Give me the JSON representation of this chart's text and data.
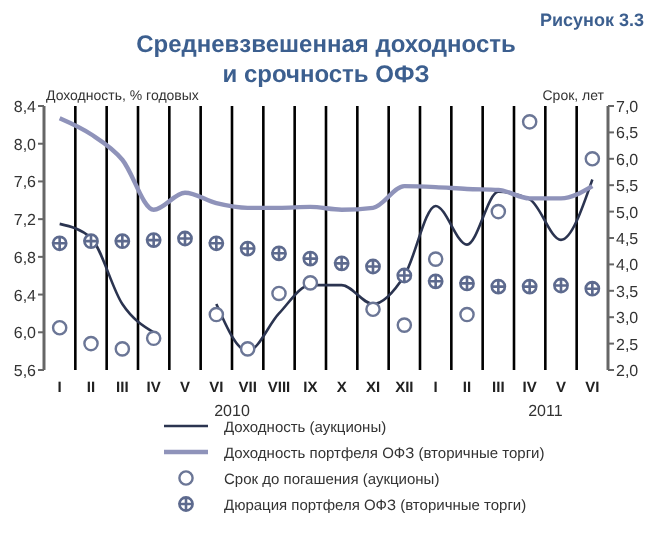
{
  "chart_data": {
    "type": "line",
    "title": "Средневзвешенная доходность\nи срочность ОФЗ",
    "ylabel": "Доходность, % годовых",
    "y2label": "Срок, лет",
    "annotations": [
      "Рисунок 3.3",
      "2010",
      "2011"
    ],
    "categories": [
      "I",
      "II",
      "III",
      "IV",
      "V",
      "VI",
      "VII",
      "VIII",
      "IX",
      "X",
      "XI",
      "XII",
      "I",
      "II",
      "III",
      "IV",
      "V",
      "VI"
    ],
    "ylim": [
      5.6,
      8.4
    ],
    "yticks": [
      {
        "value": 5.6,
        "label": "5,6"
      },
      {
        "value": 6.0,
        "label": "6,0"
      },
      {
        "value": 6.4,
        "label": "6,4"
      },
      {
        "value": 6.8,
        "label": "6,8"
      },
      {
        "value": 7.2,
        "label": "7,2"
      },
      {
        "value": 7.6,
        "label": "7,6"
      },
      {
        "value": 8.0,
        "label": "8,0"
      },
      {
        "value": 8.4,
        "label": "8,4"
      }
    ],
    "y2lim": [
      2.0,
      7.0
    ],
    "y2ticks": [
      {
        "value": 2.0,
        "label": "2,0"
      },
      {
        "value": 2.5,
        "label": "2,5"
      },
      {
        "value": 3.0,
        "label": "3,0"
      },
      {
        "value": 3.5,
        "label": "3,5"
      },
      {
        "value": 4.0,
        "label": "4,0"
      },
      {
        "value": 4.5,
        "label": "4,5"
      },
      {
        "value": 5.0,
        "label": "5,0"
      },
      {
        "value": 5.5,
        "label": "5,5"
      },
      {
        "value": 6.0,
        "label": "6,0"
      },
      {
        "value": 6.5,
        "label": "6,5"
      },
      {
        "value": 7.0,
        "label": "7,0"
      }
    ],
    "grid": "x",
    "legend": "bottom",
    "series": [
      {
        "name": "Доходность (аукционы)",
        "color": "#2b3450",
        "values": [
          7.15,
          7.0,
          6.3,
          6.0,
          null,
          6.3,
          5.8,
          6.2,
          6.5,
          6.5,
          6.3,
          6.6,
          7.34,
          6.93,
          7.49,
          7.41,
          6.98,
          7.62
        ]
      },
      {
        "name": "Доходность портфеля ОФЗ (вторичные торги)",
        "color": "#8f93ba",
        "values": [
          8.27,
          8.1,
          7.83,
          7.3,
          7.48,
          7.37,
          7.32,
          7.32,
          7.33,
          7.3,
          7.32,
          7.55,
          7.54,
          7.52,
          7.51,
          7.42,
          7.42,
          7.55
        ]
      },
      {
        "name": "Срок до погашения (аукционы)",
        "type": "scatter",
        "axis": "y2",
        "marker": "circle",
        "color": "#6b7696",
        "values": [
          2.8,
          2.5,
          2.4,
          2.6,
          null,
          3.05,
          2.4,
          3.45,
          3.65,
          null,
          3.15,
          2.85,
          4.1,
          3.05,
          5.0,
          6.7,
          null,
          6.0
        ]
      },
      {
        "name": "Дюрация портфеля ОФЗ (вторичные торги)",
        "type": "scatter",
        "axis": "y2",
        "marker": "cross",
        "color": "#5d6a8e",
        "values": [
          4.4,
          4.44,
          4.44,
          4.46,
          4.49,
          4.4,
          4.3,
          4.21,
          4.11,
          4.02,
          3.96,
          3.79,
          3.68,
          3.64,
          3.58,
          3.58,
          3.6,
          3.54
        ]
      }
    ]
  }
}
